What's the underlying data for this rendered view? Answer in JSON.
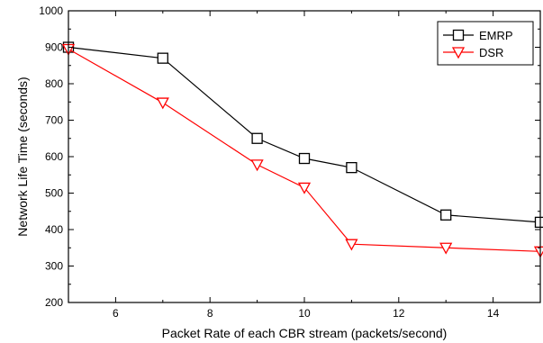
{
  "chart_data": {
    "type": "line",
    "title": "",
    "xlabel": "Packet Rate of each CBR stream (packets/second)",
    "ylabel": "Network Life Time (seconds)",
    "xlim": [
      5,
      15
    ],
    "ylim": [
      200,
      1000
    ],
    "x_ticks": [
      6,
      8,
      10,
      12,
      14
    ],
    "y_ticks": [
      200,
      300,
      400,
      500,
      600,
      700,
      800,
      900,
      1000
    ],
    "grid": false,
    "legend_position": "top-right",
    "series": [
      {
        "name": "EMRP",
        "color": "#000000",
        "marker": "square",
        "x": [
          5,
          7,
          9,
          10,
          11,
          13,
          15
        ],
        "y": [
          900,
          870,
          650,
          595,
          570,
          440,
          420
        ]
      },
      {
        "name": "DSR",
        "color": "#ff0000",
        "marker": "triangle-down",
        "x": [
          5,
          7,
          9,
          10,
          11,
          13,
          15
        ],
        "y": [
          895,
          748,
          578,
          515,
          360,
          350,
          340
        ]
      }
    ]
  }
}
